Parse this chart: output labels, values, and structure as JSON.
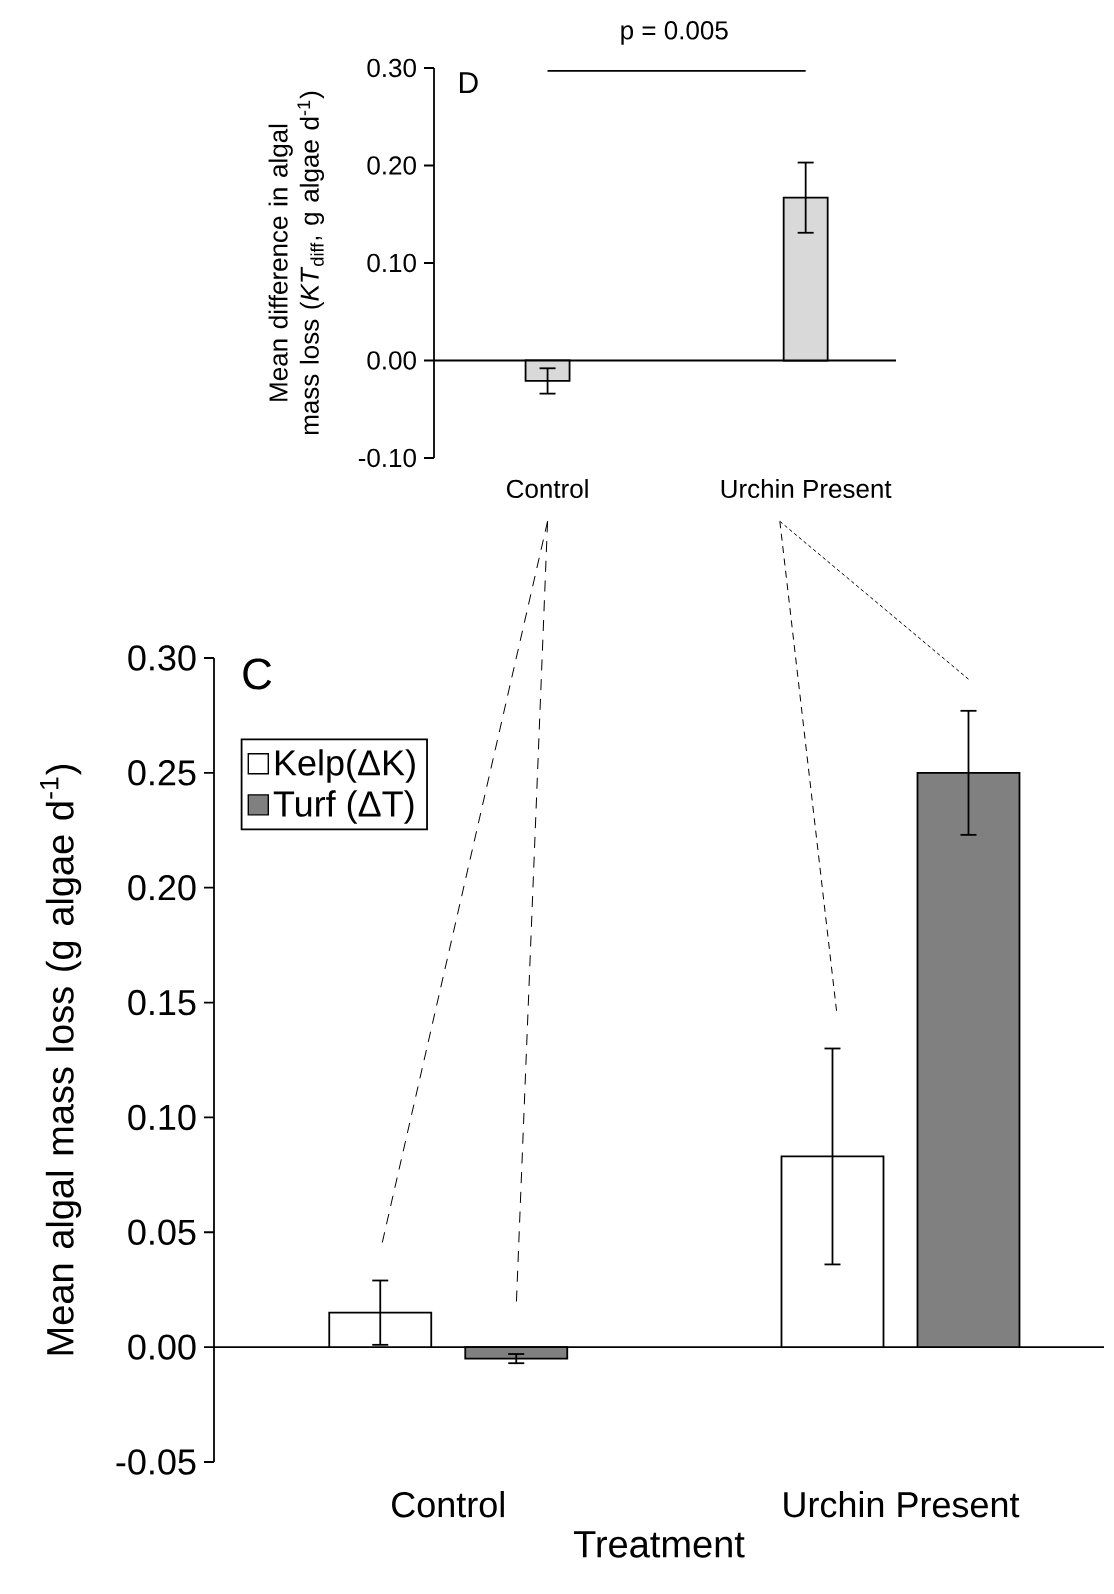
{
  "chart_data": [
    {
      "type": "bar",
      "categories": [
        "Control",
        "Urchin Present"
      ],
      "values": [
        -0.021,
        0.167
      ],
      "errors": [
        0.013,
        0.036
      ],
      "color": "#d9d9d9",
      "ylabel": "Mean difference in algal mass loss (*KT*$_{diff}$, g algae d$^{-1}$)",
      "ylim": [
        -0.1,
        0.3
      ],
      "yticks": [
        {
          "value": -0.1,
          "label": "-0.10"
        },
        {
          "value": 0,
          "label": "0.00"
        },
        {
          "value": 0.1,
          "label": "0.10"
        },
        {
          "value": 0.2,
          "label": "0.20"
        },
        {
          "value": 0.3,
          "label": "0.30"
        }
      ],
      "annotations": [
        "D",
        "p = 0.005"
      ]
    },
    {
      "type": "bar",
      "categories": [
        "Control",
        "Urchin Present"
      ],
      "series": [
        {
          "name": "Kelp(ΔK)",
          "color": "#ffffff",
          "values": [
            0.015,
            0.083
          ],
          "errors": [
            0.014,
            0.047
          ]
        },
        {
          "name": "Turf (ΔT)",
          "color": "#808080",
          "values": [
            -0.005,
            0.25
          ],
          "errors": [
            0.002,
            0.027
          ]
        }
      ],
      "xlabel": "Treatment",
      "ylabel": "Mean algal mass loss (g algae d$^{-1}$)",
      "ylim": [
        -0.05,
        0.3
      ],
      "yticks": [
        {
          "value": -0.05,
          "label": "-0.05"
        },
        {
          "value": 0,
          "label": "0.00"
        },
        {
          "value": 0.05,
          "label": "0.05"
        },
        {
          "value": 0.1,
          "label": "0.10"
        },
        {
          "value": 0.15,
          "label": "0.15"
        },
        {
          "value": 0.2,
          "label": "0.20"
        },
        {
          "value": 0.25,
          "label": "0.25"
        },
        {
          "value": 0.3,
          "label": "0.30"
        }
      ],
      "legend": "top left",
      "annotations": [
        "C"
      ]
    }
  ]
}
